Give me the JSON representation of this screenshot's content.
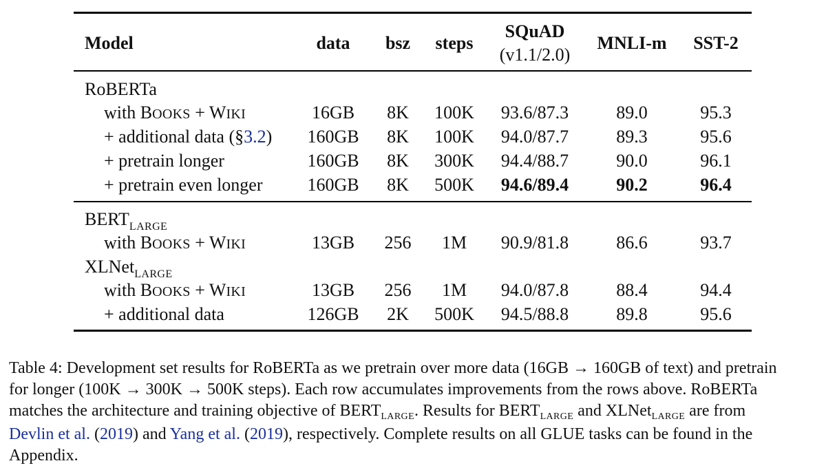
{
  "table": {
    "headers": {
      "model": "Model",
      "data": "data",
      "bsz": "bsz",
      "steps": "steps",
      "squad": "SQuAD",
      "squad_sub": "(v1.1/2.0)",
      "mnli": "MNLI-m",
      "sst2": "SST-2"
    },
    "groups": {
      "roberta": "RoBERTa",
      "bert": "BERT",
      "bert_sub": "LARGE",
      "xlnet": "XLNet",
      "xlnet_sub": "LARGE"
    },
    "rows": [
      {
        "label_prefix": "with B",
        "label_sc1": "OOKS",
        "label_mid": " + W",
        "label_sc2": "IKI",
        "label": "",
        "data": "16GB",
        "bsz": "8K",
        "steps": "100K",
        "squad": "93.6/87.3",
        "mnli": "89.0",
        "sst2": "95.3"
      },
      {
        "label": "+ additional data (§",
        "label_ref": "3.2",
        "label_end": ")",
        "data": "160GB",
        "bsz": "8K",
        "steps": "100K",
        "squad": "94.0/87.7",
        "mnli": "89.3",
        "sst2": "95.6"
      },
      {
        "label": "+ pretrain longer",
        "data": "160GB",
        "bsz": "8K",
        "steps": "300K",
        "squad": "94.4/88.7",
        "mnli": "90.0",
        "sst2": "96.1"
      },
      {
        "label": "+ pretrain even longer",
        "data": "160GB",
        "bsz": "8K",
        "steps": "500K",
        "squad": "94.6/89.4",
        "mnli": "90.2",
        "sst2": "96.4"
      },
      {
        "label_prefix": "with B",
        "label_sc1": "OOKS",
        "label_mid": " + W",
        "label_sc2": "IKI",
        "data": "13GB",
        "bsz": "256",
        "steps": "1M",
        "squad": "90.9/81.8",
        "mnli": "86.6",
        "sst2": "93.7"
      },
      {
        "label_prefix": "with B",
        "label_sc1": "OOKS",
        "label_mid": " + W",
        "label_sc2": "IKI",
        "data": "13GB",
        "bsz": "256",
        "steps": "1M",
        "squad": "94.0/87.8",
        "mnli": "88.4",
        "sst2": "94.4"
      },
      {
        "label": "+ additional data",
        "data": "126GB",
        "bsz": "2K",
        "steps": "500K",
        "squad": "94.5/88.8",
        "mnli": "89.8",
        "sst2": "95.6"
      }
    ]
  },
  "caption": {
    "l1": "Table 4: Development set results for RoBERTa as we pretrain over more data (16GB → 160GB of text) and pretrain",
    "l2": "for longer (100K → 300K → 500K steps). Each row accumulates improvements from the rows above. RoBERTa",
    "l3a": "matches the architecture and training objective of BERT",
    "l3sub": "LARGE",
    "l3b": ". Results for BERT",
    "l3sub2": "LARGE",
    "l3c": " and XLNet",
    "l3sub3": "LARGE",
    "l3d": " are from",
    "l4ref1": "Devlin et al.",
    "l4a": " (",
    "l4ref2": "2019",
    "l4b": ") and ",
    "l4ref3": "Yang et al.",
    "l4c": " (",
    "l4ref4": "2019",
    "l4d": "), respectively. Complete results on all GLUE tasks can be found in the",
    "l5": "Appendix."
  }
}
